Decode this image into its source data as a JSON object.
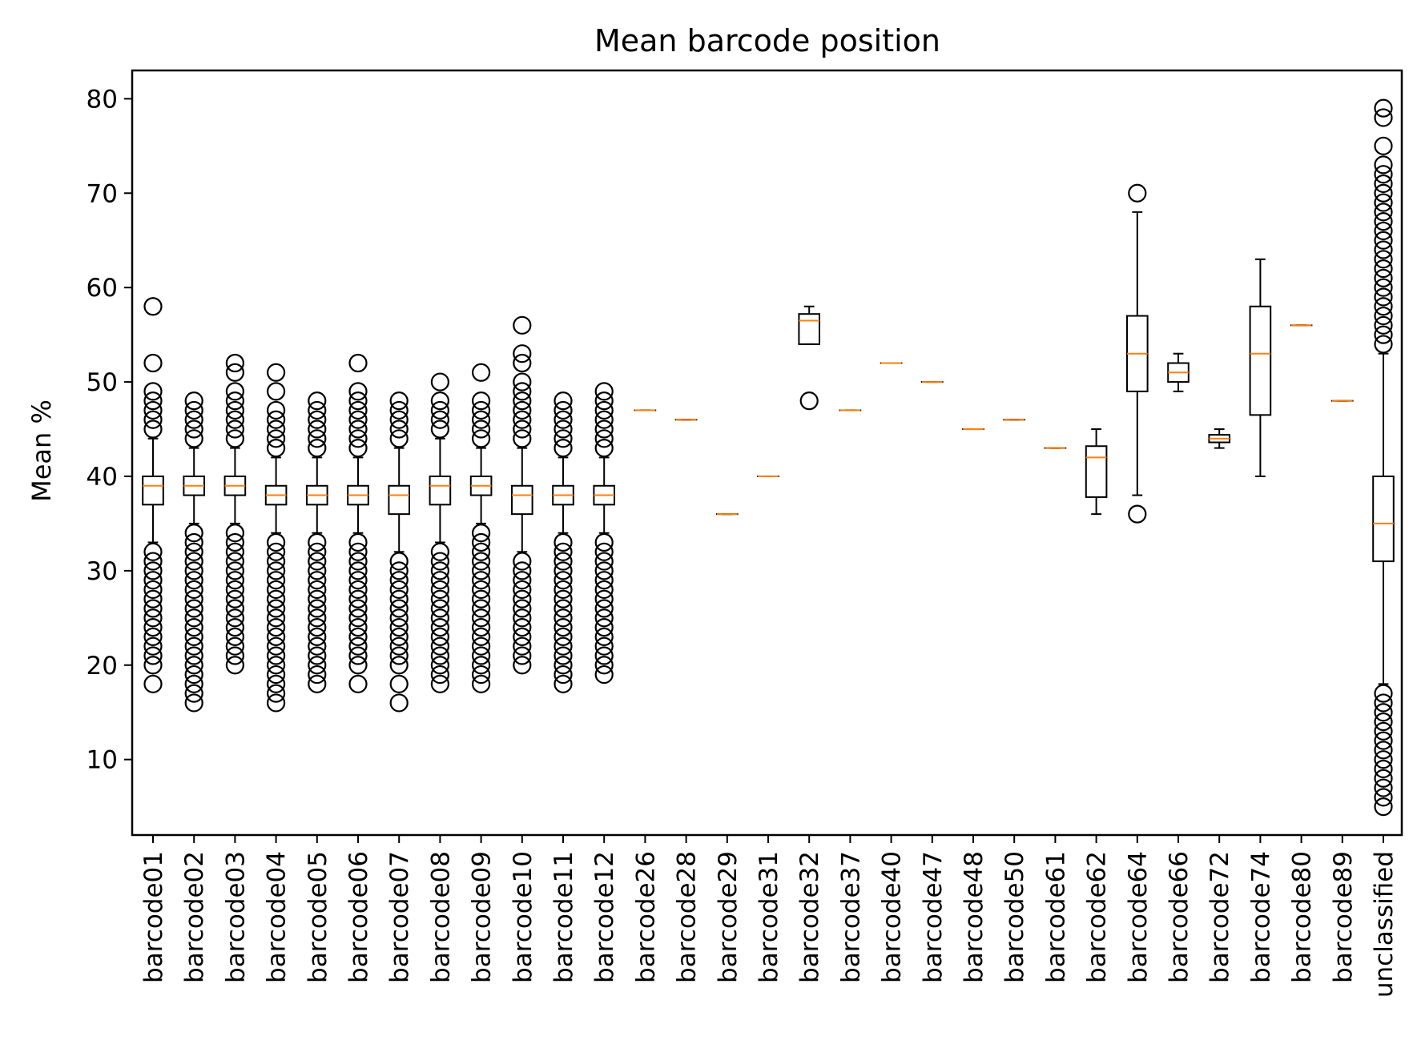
{
  "chart_data": {
    "type": "box",
    "title": "Mean barcode position",
    "xlabel": "",
    "ylabel": "Mean %",
    "ylim": [
      2,
      83
    ],
    "yticks": [
      10,
      20,
      30,
      40,
      50,
      60,
      70,
      80
    ],
    "grid": false,
    "colors": {
      "box": "#000000",
      "median": "#ff7f0e",
      "flier": "#000000"
    },
    "categories": [
      "barcode01",
      "barcode02",
      "barcode03",
      "barcode04",
      "barcode05",
      "barcode06",
      "barcode07",
      "barcode08",
      "barcode09",
      "barcode10",
      "barcode11",
      "barcode12",
      "barcode26",
      "barcode28",
      "barcode29",
      "barcode31",
      "barcode32",
      "barcode37",
      "barcode40",
      "barcode47",
      "barcode48",
      "barcode50",
      "barcode61",
      "barcode62",
      "barcode64",
      "barcode66",
      "barcode72",
      "barcode74",
      "barcode80",
      "barcode89",
      "unclassified"
    ],
    "boxes": [
      {
        "label": "barcode01",
        "whisker_low": 33,
        "q1": 37,
        "median": 39,
        "q3": 40,
        "whisker_high": 44,
        "fliers": [
          18,
          20,
          21,
          22,
          23,
          24,
          25,
          26,
          27,
          28,
          29,
          30,
          31,
          32,
          45,
          46,
          47,
          48,
          49,
          52,
          58
        ]
      },
      {
        "label": "barcode02",
        "whisker_low": 35,
        "q1": 38,
        "median": 39,
        "q3": 40,
        "whisker_high": 43,
        "fliers": [
          16,
          17,
          18,
          19,
          20,
          21,
          22,
          23,
          24,
          25,
          26,
          27,
          28,
          29,
          30,
          31,
          32,
          33,
          34,
          44,
          45,
          46,
          47,
          48
        ]
      },
      {
        "label": "barcode03",
        "whisker_low": 35,
        "q1": 38,
        "median": 39,
        "q3": 40,
        "whisker_high": 43,
        "fliers": [
          20,
          21,
          22,
          23,
          24,
          25,
          26,
          27,
          28,
          29,
          30,
          31,
          32,
          33,
          34,
          44,
          45,
          46,
          47,
          48,
          49,
          51,
          52
        ]
      },
      {
        "label": "barcode04",
        "whisker_low": 34,
        "q1": 37,
        "median": 38,
        "q3": 39,
        "whisker_high": 42,
        "fliers": [
          16,
          17,
          18,
          19,
          20,
          21,
          22,
          23,
          24,
          25,
          26,
          27,
          28,
          29,
          30,
          31,
          32,
          33,
          43,
          44,
          45,
          46,
          47,
          49,
          51
        ]
      },
      {
        "label": "barcode05",
        "whisker_low": 34,
        "q1": 37,
        "median": 38,
        "q3": 39,
        "whisker_high": 42,
        "fliers": [
          18,
          19,
          20,
          21,
          22,
          23,
          24,
          25,
          26,
          27,
          28,
          29,
          30,
          31,
          32,
          33,
          43,
          44,
          45,
          46,
          47,
          48
        ]
      },
      {
        "label": "barcode06",
        "whisker_low": 34,
        "q1": 37,
        "median": 38,
        "q3": 39,
        "whisker_high": 42,
        "fliers": [
          18,
          20,
          21,
          22,
          23,
          24,
          25,
          26,
          27,
          28,
          29,
          30,
          31,
          32,
          33,
          43,
          44,
          45,
          46,
          47,
          48,
          49,
          52
        ]
      },
      {
        "label": "barcode07",
        "whisker_low": 32,
        "q1": 36,
        "median": 38,
        "q3": 39,
        "whisker_high": 43,
        "fliers": [
          16,
          18,
          20,
          21,
          22,
          23,
          24,
          25,
          26,
          27,
          28,
          29,
          30,
          31,
          44,
          45,
          46,
          47,
          48
        ]
      },
      {
        "label": "barcode08",
        "whisker_low": 33,
        "q1": 37,
        "median": 39,
        "q3": 40,
        "whisker_high": 44,
        "fliers": [
          18,
          19,
          20,
          21,
          22,
          23,
          24,
          25,
          26,
          27,
          28,
          29,
          30,
          31,
          32,
          45,
          46,
          47,
          48,
          50
        ]
      },
      {
        "label": "barcode09",
        "whisker_low": 35,
        "q1": 38,
        "median": 39,
        "q3": 40,
        "whisker_high": 43,
        "fliers": [
          18,
          19,
          20,
          21,
          22,
          23,
          24,
          25,
          26,
          27,
          28,
          29,
          30,
          31,
          32,
          33,
          34,
          44,
          45,
          46,
          47,
          48,
          51
        ]
      },
      {
        "label": "barcode10",
        "whisker_low": 32,
        "q1": 36,
        "median": 38,
        "q3": 39,
        "whisker_high": 43,
        "fliers": [
          20,
          21,
          22,
          23,
          24,
          25,
          26,
          27,
          28,
          29,
          30,
          31,
          44,
          45,
          46,
          47,
          48,
          49,
          50,
          52,
          53,
          56
        ]
      },
      {
        "label": "barcode11",
        "whisker_low": 34,
        "q1": 37,
        "median": 38,
        "q3": 39,
        "whisker_high": 42,
        "fliers": [
          18,
          19,
          20,
          21,
          22,
          23,
          24,
          25,
          26,
          27,
          28,
          29,
          30,
          31,
          32,
          33,
          43,
          44,
          45,
          46,
          47,
          48
        ]
      },
      {
        "label": "barcode12",
        "whisker_low": 34,
        "q1": 37,
        "median": 38,
        "q3": 39,
        "whisker_high": 42,
        "fliers": [
          19,
          20,
          21,
          22,
          23,
          24,
          25,
          26,
          27,
          28,
          29,
          30,
          31,
          32,
          33,
          43,
          44,
          45,
          46,
          47,
          48,
          49
        ]
      },
      {
        "label": "barcode26",
        "whisker_low": 47,
        "q1": 47,
        "median": 47,
        "q3": 47,
        "whisker_high": 47,
        "fliers": []
      },
      {
        "label": "barcode28",
        "whisker_low": 46,
        "q1": 46,
        "median": 46,
        "q3": 46,
        "whisker_high": 46,
        "fliers": []
      },
      {
        "label": "barcode29",
        "whisker_low": 36,
        "q1": 36,
        "median": 36,
        "q3": 36,
        "whisker_high": 36,
        "fliers": []
      },
      {
        "label": "barcode31",
        "whisker_low": 40,
        "q1": 40,
        "median": 40,
        "q3": 40,
        "whisker_high": 40,
        "fliers": []
      },
      {
        "label": "barcode32",
        "whisker_low": 54,
        "q1": 54,
        "median": 56.5,
        "q3": 57.2,
        "whisker_high": 58,
        "fliers": [
          48
        ]
      },
      {
        "label": "barcode37",
        "whisker_low": 47,
        "q1": 47,
        "median": 47,
        "q3": 47,
        "whisker_high": 47,
        "fliers": []
      },
      {
        "label": "barcode40",
        "whisker_low": 52,
        "q1": 52,
        "median": 52,
        "q3": 52,
        "whisker_high": 52,
        "fliers": []
      },
      {
        "label": "barcode47",
        "whisker_low": 50,
        "q1": 50,
        "median": 50,
        "q3": 50,
        "whisker_high": 50,
        "fliers": []
      },
      {
        "label": "barcode48",
        "whisker_low": 45,
        "q1": 45,
        "median": 45,
        "q3": 45,
        "whisker_high": 45,
        "fliers": []
      },
      {
        "label": "barcode50",
        "whisker_low": 46,
        "q1": 46,
        "median": 46,
        "q3": 46,
        "whisker_high": 46,
        "fliers": []
      },
      {
        "label": "barcode61",
        "whisker_low": 43,
        "q1": 43,
        "median": 43,
        "q3": 43,
        "whisker_high": 43,
        "fliers": []
      },
      {
        "label": "barcode62",
        "whisker_low": 36,
        "q1": 37.8,
        "median": 42,
        "q3": 43.2,
        "whisker_high": 45,
        "fliers": []
      },
      {
        "label": "barcode64",
        "whisker_low": 38,
        "q1": 49,
        "median": 53,
        "q3": 57,
        "whisker_high": 68,
        "fliers": [
          36,
          70
        ]
      },
      {
        "label": "barcode66",
        "whisker_low": 49,
        "q1": 50,
        "median": 51,
        "q3": 52,
        "whisker_high": 53,
        "fliers": []
      },
      {
        "label": "barcode72",
        "whisker_low": 43,
        "q1": 43.6,
        "median": 44,
        "q3": 44.4,
        "whisker_high": 45,
        "fliers": []
      },
      {
        "label": "barcode74",
        "whisker_low": 40,
        "q1": 46.5,
        "median": 53,
        "q3": 58,
        "whisker_high": 63,
        "fliers": []
      },
      {
        "label": "barcode80",
        "whisker_low": 56,
        "q1": 56,
        "median": 56,
        "q3": 56,
        "whisker_high": 56,
        "fliers": []
      },
      {
        "label": "barcode89",
        "whisker_low": 48,
        "q1": 48,
        "median": 48,
        "q3": 48,
        "whisker_high": 48,
        "fliers": []
      },
      {
        "label": "unclassified",
        "whisker_low": 18,
        "q1": 31,
        "median": 35,
        "q3": 40,
        "whisker_high": 53,
        "fliers": [
          5,
          6,
          7,
          8,
          9,
          10,
          11,
          12,
          13,
          14,
          15,
          16,
          17,
          54,
          55,
          56,
          57,
          58,
          59,
          60,
          61,
          62,
          63,
          64,
          65,
          66,
          67,
          68,
          69,
          70,
          71,
          72,
          73,
          75,
          78,
          79
        ]
      }
    ]
  }
}
